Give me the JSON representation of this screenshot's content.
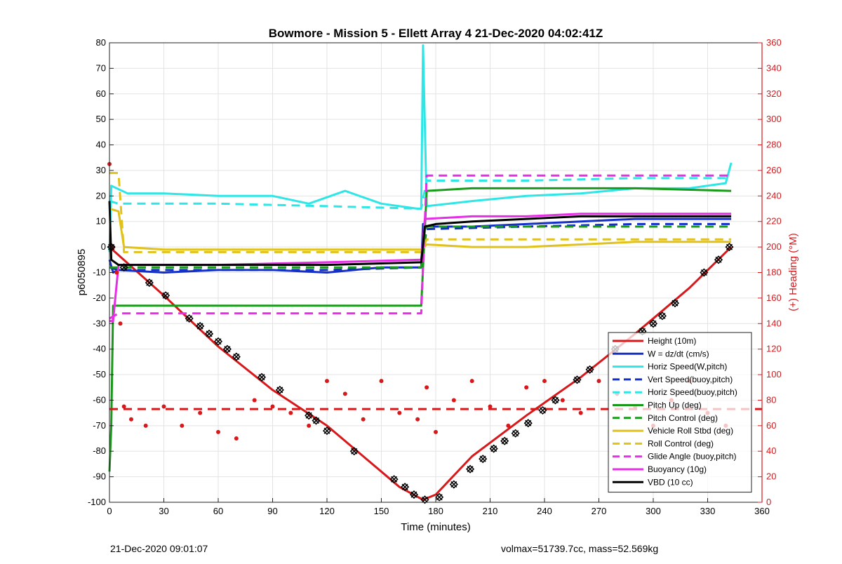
{
  "footer": {
    "left_text": "21-Dec-2020 09:01:07",
    "right_text": "volmax=51739.7cc, mass=52.569kg"
  },
  "chart_data": {
    "type": "line",
    "title": "Bowmore - Mission 5 - Ellett Array 4 21-Dec-2020 04:02:41Z",
    "xlabel": "Time (minutes)",
    "ylabel": "p6050895",
    "ylabel_right": "(+) Heading (°M)",
    "xlim": [
      0,
      360
    ],
    "ylim": [
      -100,
      80
    ],
    "ylim_right": [
      0,
      360
    ],
    "xticks": [
      0,
      30,
      60,
      90,
      120,
      150,
      180,
      210,
      240,
      270,
      300,
      330,
      360
    ],
    "yticks": [
      -100,
      -90,
      -80,
      -70,
      -60,
      -50,
      -40,
      -30,
      -20,
      -10,
      0,
      10,
      20,
      30,
      40,
      50,
      60,
      70,
      80
    ],
    "yticks_right": [
      0,
      20,
      40,
      60,
      80,
      100,
      120,
      140,
      160,
      180,
      200,
      220,
      240,
      260,
      280,
      300,
      320,
      340,
      360
    ],
    "grid": true,
    "legend_position": "bottom-right",
    "colors": {
      "red": "#d7191c",
      "blue": "#1430c8",
      "cyan": "#2ee6e6",
      "green": "#1a9a1a",
      "yellow": "#e0c21a",
      "magenta": "#e52ee5",
      "black": "#000000",
      "axis_right": "#d7191c"
    },
    "series": [
      {
        "name": "Height (10m)",
        "color": "red",
        "style": "solid",
        "x": [
          0,
          30,
          60,
          90,
          120,
          150,
          160,
          173,
          180,
          200,
          230,
          260,
          290,
          320,
          343
        ],
        "y": [
          0,
          -19,
          -39,
          -56,
          -70,
          -88,
          -94,
          -99,
          -97,
          -82,
          -66,
          -51,
          -34,
          -16,
          0
        ]
      },
      {
        "name": "W = dz/dt (cm/s)",
        "color": "blue",
        "style": "solid",
        "x": [
          0,
          2,
          5,
          30,
          60,
          90,
          120,
          150,
          172,
          173,
          175,
          200,
          230,
          260,
          290,
          320,
          343
        ],
        "y": [
          -5,
          -10,
          -9,
          -10,
          -9,
          -9,
          -10,
          -8,
          -8,
          9,
          8,
          8,
          9,
          10,
          11,
          11,
          11
        ]
      },
      {
        "name": "Horiz Speed(W,pitch)",
        "color": "cyan",
        "style": "solid",
        "x": [
          0,
          1,
          10,
          30,
          60,
          90,
          110,
          130,
          150,
          170,
          172,
          173,
          175,
          200,
          230,
          260,
          290,
          320,
          340,
          343
        ],
        "y": [
          -2,
          24,
          21,
          21,
          20,
          20,
          17,
          22,
          17,
          15,
          15,
          79,
          16,
          18,
          20,
          21,
          23,
          23,
          25,
          33
        ]
      },
      {
        "name": "Vert Speed(buoy,pitch)",
        "color": "blue",
        "style": "dashed",
        "x": [
          0,
          5,
          60,
          120,
          172,
          175,
          230,
          290,
          343
        ],
        "y": [
          -8,
          -9,
          -9,
          -9,
          -8,
          7,
          8,
          9,
          9
        ]
      },
      {
        "name": "Horiz Speed(buoy,pitch)",
        "color": "cyan",
        "style": "dashed",
        "x": [
          0,
          5,
          60,
          120,
          172,
          175,
          230,
          290,
          343
        ],
        "y": [
          18,
          17,
          17,
          16,
          15,
          26,
          26,
          27,
          27
        ]
      },
      {
        "name": "Pitch Up (deg)",
        "color": "green",
        "style": "solid",
        "x": [
          0,
          1,
          2,
          10,
          60,
          120,
          172,
          175,
          200,
          230,
          260,
          290,
          343
        ],
        "y": [
          -88,
          -70,
          -23,
          -23,
          -23,
          -23,
          -23,
          22,
          23,
          23,
          23,
          23,
          22
        ]
      },
      {
        "name": "Pitch Control (deg)",
        "color": "green",
        "style": "dashed",
        "x": [
          0,
          5,
          60,
          120,
          172,
          175,
          230,
          290,
          343
        ],
        "y": [
          -8,
          -8,
          -8,
          -8,
          -8,
          8,
          8,
          8,
          8
        ]
      },
      {
        "name": "Vehicle Roll Stbd (deg)",
        "color": "yellow",
        "style": "solid",
        "x": [
          0,
          5,
          8,
          30,
          60,
          90,
          120,
          150,
          172,
          175,
          200,
          230,
          260,
          290,
          320,
          343
        ],
        "y": [
          15,
          14,
          0,
          -1,
          -1,
          -1,
          -1,
          -1,
          -1,
          1,
          0,
          0,
          1,
          2,
          2,
          2
        ]
      },
      {
        "name": "Roll Control (deg)",
        "color": "yellow",
        "style": "dashed",
        "x": [
          0,
          5,
          8,
          60,
          120,
          172,
          175,
          230,
          290,
          343
        ],
        "y": [
          29,
          29,
          -2,
          -2,
          -2,
          -2,
          3,
          3,
          3,
          3
        ]
      },
      {
        "name": "Glide Angle (buoy,pitch)",
        "color": "magenta",
        "style": "dashed",
        "x": [
          0,
          5,
          60,
          120,
          172,
          175,
          230,
          290,
          343
        ],
        "y": [
          -28,
          -26,
          -26,
          -26,
          -26,
          28,
          28,
          28,
          28
        ]
      },
      {
        "name": "Buoyancy (10g)",
        "color": "magenta",
        "style": "solid",
        "x": [
          0,
          2,
          5,
          60,
          120,
          172,
          174,
          200,
          230,
          260,
          290,
          343
        ],
        "y": [
          -29,
          -29,
          -7,
          -7,
          -6,
          -5,
          11,
          12,
          12,
          13,
          13,
          13
        ]
      },
      {
        "name": "VBD (10 cc)",
        "color": "black",
        "style": "solid",
        "x": [
          0,
          1,
          5,
          60,
          120,
          172,
          174,
          180,
          200,
          230,
          260,
          290,
          343
        ],
        "y": [
          18,
          -5,
          -7,
          -7,
          -7,
          -6,
          8,
          9,
          10,
          11,
          12,
          12,
          12
        ]
      }
    ],
    "heading_right": {
      "style": "dots",
      "color": "red",
      "x": [
        0,
        2,
        4,
        6,
        8,
        12,
        20,
        30,
        40,
        50,
        60,
        70,
        80,
        90,
        100,
        110,
        120,
        130,
        140,
        150,
        160,
        170,
        175,
        180,
        190,
        200,
        210,
        220,
        230,
        240,
        250,
        260,
        270,
        280,
        290,
        300,
        310,
        320,
        330,
        340
      ],
      "y": [
        265,
        200,
        180,
        140,
        75,
        65,
        60,
        75,
        60,
        70,
        55,
        50,
        80,
        75,
        70,
        60,
        95,
        85,
        65,
        95,
        70,
        65,
        90,
        55,
        80,
        95,
        75,
        60,
        90,
        95,
        80,
        70,
        95,
        85,
        75,
        60,
        80,
        95,
        70,
        60
      ],
      "mean_line_value": 73
    },
    "markers": {
      "series": "Height (10m)",
      "x": [
        1,
        8,
        22,
        31,
        44,
        50,
        55,
        60,
        65,
        70,
        84,
        94,
        110,
        114,
        120,
        135,
        157,
        163,
        168,
        174,
        182,
        190,
        199,
        206,
        212,
        218,
        224,
        231,
        239,
        246,
        258,
        265,
        279,
        294,
        300,
        305,
        312,
        328,
        336,
        342
      ],
      "y": [
        0,
        -8,
        -14,
        -19,
        -28,
        -31,
        -34,
        -37,
        -40,
        -43,
        -51,
        -56,
        -66,
        -68,
        -72,
        -80,
        -91,
        -94,
        -97,
        -99,
        -98,
        -93,
        -87,
        -83,
        -79,
        -76,
        -73,
        -69,
        -64,
        -60,
        -52,
        -48,
        -40,
        -33,
        -30,
        -27,
        -22,
        -10,
        -5,
        0
      ]
    }
  }
}
